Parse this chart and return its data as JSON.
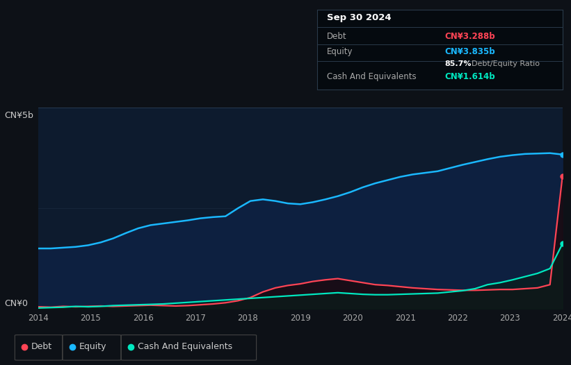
{
  "bg_color": "#0d1117",
  "plot_bg_color": "#0d1b2e",
  "grid_color": "#263a52",
  "title_box": {
    "date": "Sep 30 2024",
    "debt_label": "Debt",
    "debt_value": "CN¥3.288b",
    "equity_label": "Equity",
    "equity_value": "CN¥3.835b",
    "ratio_bold": "85.7%",
    "ratio_text": " Debt/Equity Ratio",
    "cash_label": "Cash And Equivalents",
    "cash_value": "CN¥1.614b"
  },
  "ylabel_top": "CN¥5b",
  "ylabel_bottom": "CN¥0",
  "x_ticks": [
    "2014",
    "2015",
    "2016",
    "2017",
    "2018",
    "2019",
    "2020",
    "2021",
    "2022",
    "2023",
    "2024"
  ],
  "equity_color": "#1ab8ff",
  "debt_color": "#ff4455",
  "cash_color": "#00e8c0",
  "ymax": 5.0,
  "equity_data": [
    1.5,
    1.5,
    1.52,
    1.54,
    1.58,
    1.65,
    1.75,
    1.88,
    2.0,
    2.08,
    2.12,
    2.16,
    2.2,
    2.25,
    2.28,
    2.3,
    2.5,
    2.68,
    2.72,
    2.68,
    2.62,
    2.6,
    2.65,
    2.72,
    2.8,
    2.9,
    3.02,
    3.12,
    3.2,
    3.28,
    3.34,
    3.38,
    3.42,
    3.5,
    3.58,
    3.65,
    3.72,
    3.78,
    3.82,
    3.85,
    3.86,
    3.87,
    3.835
  ],
  "debt_data": [
    0.05,
    0.04,
    0.06,
    0.05,
    0.06,
    0.07,
    0.06,
    0.07,
    0.08,
    0.09,
    0.08,
    0.07,
    0.08,
    0.1,
    0.12,
    0.15,
    0.2,
    0.28,
    0.42,
    0.52,
    0.58,
    0.62,
    0.68,
    0.72,
    0.75,
    0.7,
    0.65,
    0.6,
    0.58,
    0.55,
    0.52,
    0.5,
    0.48,
    0.47,
    0.46,
    0.46,
    0.47,
    0.48,
    0.48,
    0.5,
    0.52,
    0.6,
    3.288
  ],
  "cash_data": [
    0.02,
    0.03,
    0.04,
    0.06,
    0.05,
    0.06,
    0.08,
    0.09,
    0.1,
    0.11,
    0.12,
    0.14,
    0.16,
    0.18,
    0.2,
    0.22,
    0.24,
    0.26,
    0.28,
    0.3,
    0.32,
    0.34,
    0.36,
    0.38,
    0.4,
    0.38,
    0.36,
    0.35,
    0.35,
    0.36,
    0.37,
    0.38,
    0.39,
    0.42,
    0.45,
    0.5,
    0.6,
    0.65,
    0.72,
    0.8,
    0.88,
    1.0,
    1.614
  ],
  "legend_items": [
    {
      "color": "#ff4455",
      "label": "Debt"
    },
    {
      "color": "#1ab8ff",
      "label": "Equity"
    },
    {
      "color": "#00e8c0",
      "label": "Cash And Equivalents"
    }
  ]
}
